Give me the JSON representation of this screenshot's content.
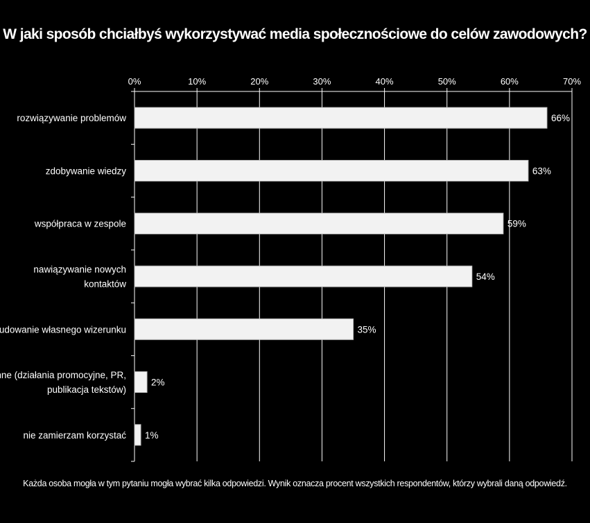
{
  "chart_data": {
    "type": "bar",
    "orientation": "horizontal",
    "title": "W jaki sposób chciałbyś wykorzystywać media społecznościowe do celów zawodowych?",
    "categories": [
      "rozwiązywanie problemów",
      "zdobywanie wiedzy",
      "współpraca w zespole",
      "nawiązywanie nowych kontaktów",
      "budowanie własnego wizerunku",
      "inne (działania promocyjne, PR, publikacja tekstów)",
      "nie zamierzam korzystać"
    ],
    "category_lines": [
      [
        "rozwiązywanie problemów"
      ],
      [
        "zdobywanie wiedzy"
      ],
      [
        "współpraca w zespole"
      ],
      [
        "nawiązywanie nowych",
        "kontaktów"
      ],
      [
        "budowanie własnego wizerunku"
      ],
      [
        "inne (działania promocyjne, PR,",
        "publikacja tekstów)"
      ],
      [
        "nie zamierzam korzystać"
      ]
    ],
    "values": [
      66,
      63,
      59,
      54,
      35,
      2,
      1
    ],
    "data_labels": [
      "66%",
      "63%",
      "59%",
      "54%",
      "35%",
      "2%",
      "1%"
    ],
    "x_ticks": [
      "0%",
      "10%",
      "20%",
      "30%",
      "40%",
      "50%",
      "60%",
      "70%"
    ],
    "xlim": [
      0,
      70
    ],
    "xaxis_position": "top",
    "grid": true,
    "legend": "none",
    "colors": {
      "background": "#000000",
      "bar_fill": "#f2f2f2",
      "bar_stroke": "#bfbfbf",
      "grid": "#ffffff",
      "text": "#ffffff"
    }
  },
  "footnote": "Każda osoba mogła w tym pytaniu mogła wybrać kilka odpowiedzi. Wynik oznacza procent wszystkich respondentów, którzy wybrali daną odpowiedź."
}
